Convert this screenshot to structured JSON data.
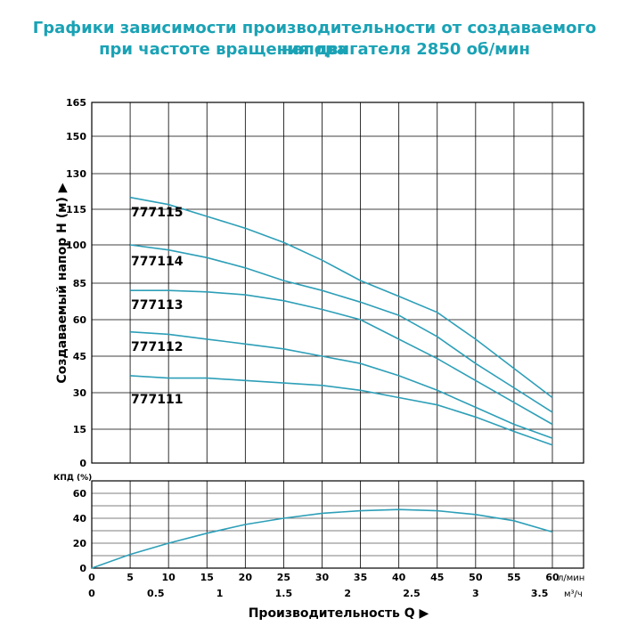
{
  "title_line1": "Графики зависимости производительности от создаваемого напора",
  "title_line2": "при частоте вращения двигателя 2850 об/мин",
  "colors": {
    "curve": "#2d9fb8",
    "grid": "#000000",
    "title": "#1aa2b5"
  },
  "chart_data": [
    {
      "type": "line",
      "title": "",
      "ylabel": "Создаваемый напор Н (м)",
      "xlabel": "",
      "xlim": [
        0,
        60
      ],
      "ylim": [
        0,
        165
      ],
      "y_ticks": [
        0,
        15,
        30,
        45,
        60,
        85,
        100,
        115,
        130,
        150,
        165
      ],
      "grid": true,
      "series": [
        {
          "name": "777115",
          "x": [
            5,
            10,
            15,
            20,
            25,
            30,
            35,
            40,
            45,
            50,
            55,
            60
          ],
          "y": [
            120,
            117,
            112,
            107,
            101,
            94,
            86,
            76,
            65,
            52,
            40,
            28
          ]
        },
        {
          "name": "777114",
          "x": [
            5,
            10,
            15,
            20,
            25,
            30,
            35,
            40,
            45,
            50,
            55,
            60
          ],
          "y": [
            100,
            98,
            95,
            91,
            86,
            80,
            72,
            63,
            53,
            42,
            32,
            22
          ]
        },
        {
          "name": "777113",
          "x": [
            5,
            10,
            15,
            20,
            25,
            30,
            35,
            40,
            45,
            50,
            55,
            60
          ],
          "y": [
            80,
            80,
            79,
            77,
            73,
            67,
            60,
            52,
            44,
            35,
            26,
            17
          ]
        },
        {
          "name": "777112",
          "x": [
            5,
            10,
            15,
            20,
            25,
            30,
            35,
            40,
            45,
            50,
            55,
            60
          ],
          "y": [
            55,
            54,
            52,
            50,
            48,
            45,
            42,
            37,
            31,
            24,
            17,
            11
          ]
        },
        {
          "name": "777111",
          "x": [
            5,
            10,
            15,
            20,
            25,
            30,
            35,
            40,
            45,
            50,
            55,
            60
          ],
          "y": [
            37,
            36,
            36,
            35,
            34,
            33,
            31,
            28,
            25,
            20,
            14,
            8
          ]
        }
      ]
    },
    {
      "type": "line",
      "title": "",
      "ylabel": "КПД (%)",
      "xlabel": "Производительность Q",
      "xlim": [
        0,
        60
      ],
      "ylim": [
        0,
        70
      ],
      "y_ticks": [
        0,
        20,
        40,
        60
      ],
      "x_ticks": [
        0,
        5,
        10,
        15,
        20,
        25,
        30,
        35,
        40,
        45,
        50,
        55,
        60
      ],
      "x_unit": "л/мин",
      "x2_ticks": [
        "0",
        "0.5",
        "1",
        "1.5",
        "2",
        "2.5",
        "3",
        "3.5"
      ],
      "x2_unit": "м³/ч",
      "grid": true,
      "series": [
        {
          "name": "",
          "x": [
            0,
            5,
            10,
            15,
            20,
            25,
            30,
            35,
            40,
            45,
            50,
            55,
            60
          ],
          "y": [
            0,
            11,
            20,
            28,
            35,
            40,
            44,
            46,
            47,
            46,
            43,
            38,
            29
          ]
        }
      ]
    }
  ]
}
